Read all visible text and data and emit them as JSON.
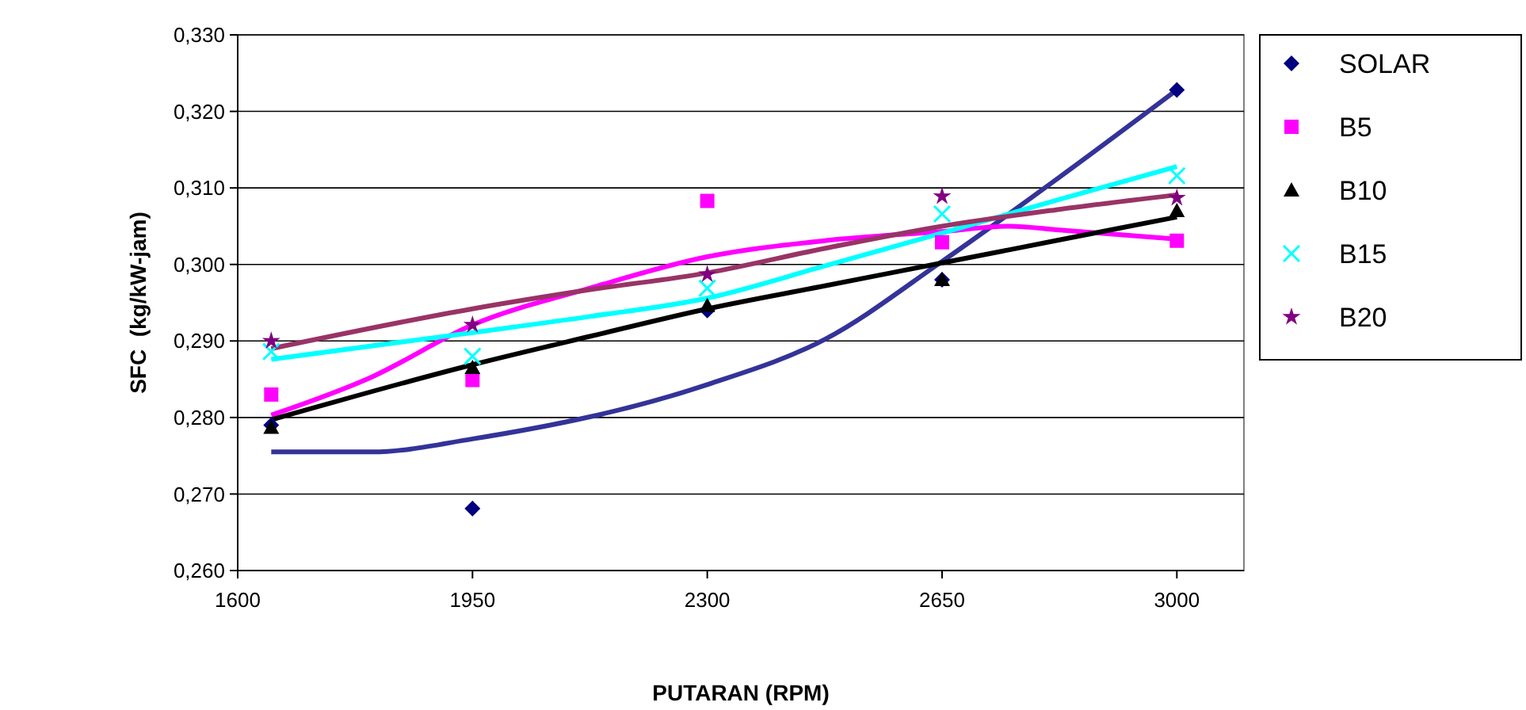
{
  "chart_data": {
    "type": "scatter",
    "xlabel": "PUTARAN (RPM)",
    "ylabel": "SFC  (kg/kW-jam)",
    "xlim": [
      1600,
      3100
    ],
    "xticks": [
      1600,
      1950,
      2300,
      2650,
      3000
    ],
    "ylim": [
      0.26,
      0.33
    ],
    "yticks": [
      {
        "value": 0.26,
        "label": "0,260"
      },
      {
        "value": 0.27,
        "label": "0,270"
      },
      {
        "value": 0.28,
        "label": "0,280"
      },
      {
        "value": 0.29,
        "label": "0,290"
      },
      {
        "value": 0.3,
        "label": "0,300"
      },
      {
        "value": 0.31,
        "label": "0,310"
      },
      {
        "value": 0.32,
        "label": "0,320"
      },
      {
        "value": 0.33,
        "label": "0,330"
      }
    ],
    "grid": "y",
    "legend": "right",
    "series": [
      {
        "type": "line",
        "color": "#333399",
        "x": [
          1650,
          1800,
          1950,
          2300,
          2475,
          2650,
          2825,
          3000
        ],
        "values": [
          0.2755,
          0.2755,
          0.2772,
          0.2843,
          0.2902,
          0.3004,
          0.3114,
          0.3228
        ]
      },
      {
        "type": "line",
        "color": "#ff00ff",
        "x": [
          1650,
          1800,
          1950,
          2125,
          2300,
          2475,
          2650,
          2750,
          2825,
          3000
        ],
        "values": [
          0.2803,
          0.2853,
          0.2921,
          0.2969,
          0.301,
          0.3031,
          0.3043,
          0.305,
          0.3045,
          0.3033
        ]
      },
      {
        "type": "line",
        "color": "#000000",
        "x": [
          1650,
          1950,
          2125,
          2300,
          2475,
          2650,
          2825,
          3000
        ],
        "values": [
          0.2797,
          0.2869,
          0.2906,
          0.2942,
          0.2972,
          0.3002,
          0.3032,
          0.3062
        ]
      },
      {
        "type": "line",
        "color": "#00ffff",
        "x": [
          1650,
          1950,
          2125,
          2300,
          2475,
          2650,
          2825,
          3000
        ],
        "values": [
          0.2876,
          0.2911,
          0.2932,
          0.2956,
          0.2998,
          0.3041,
          0.3085,
          0.3128
        ]
      },
      {
        "type": "line",
        "color": "#993366",
        "x": [
          1650,
          1950,
          2125,
          2300,
          2475,
          2650,
          2825,
          3000
        ],
        "values": [
          0.289,
          0.2942,
          0.2967,
          0.2989,
          0.3021,
          0.305,
          0.3072,
          0.3091
        ]
      },
      {
        "name": "SOLAR",
        "color": "#000080",
        "marker": "diamond",
        "x": [
          1650,
          1950,
          2300,
          2650,
          3000
        ],
        "values": [
          0.279,
          0.2681,
          0.294,
          0.298,
          0.3228
        ]
      },
      {
        "name": "B5",
        "color": "#ff00ff",
        "marker": "square",
        "x": [
          1650,
          1950,
          2300,
          2650,
          3000
        ],
        "values": [
          0.283,
          0.2849,
          0.3083,
          0.3029,
          0.3031
        ]
      },
      {
        "name": "B10",
        "color": "#000000",
        "marker": "triangle",
        "x": [
          1650,
          1950,
          2300,
          2650,
          3000
        ],
        "values": [
          0.2787,
          0.2865,
          0.2946,
          0.298,
          0.307
        ]
      },
      {
        "name": "B15",
        "color": "#00ffff",
        "marker": "cross",
        "x": [
          1650,
          1950,
          2300,
          2650,
          3000
        ],
        "values": [
          0.2886,
          0.288,
          0.2969,
          0.3066,
          0.3116
        ]
      },
      {
        "name": "B20",
        "color": "#800080",
        "marker": "star",
        "x": [
          1650,
          1950,
          2300,
          2650,
          3000
        ],
        "values": [
          0.29,
          0.2921,
          0.2987,
          0.3089,
          0.3087
        ]
      }
    ]
  }
}
